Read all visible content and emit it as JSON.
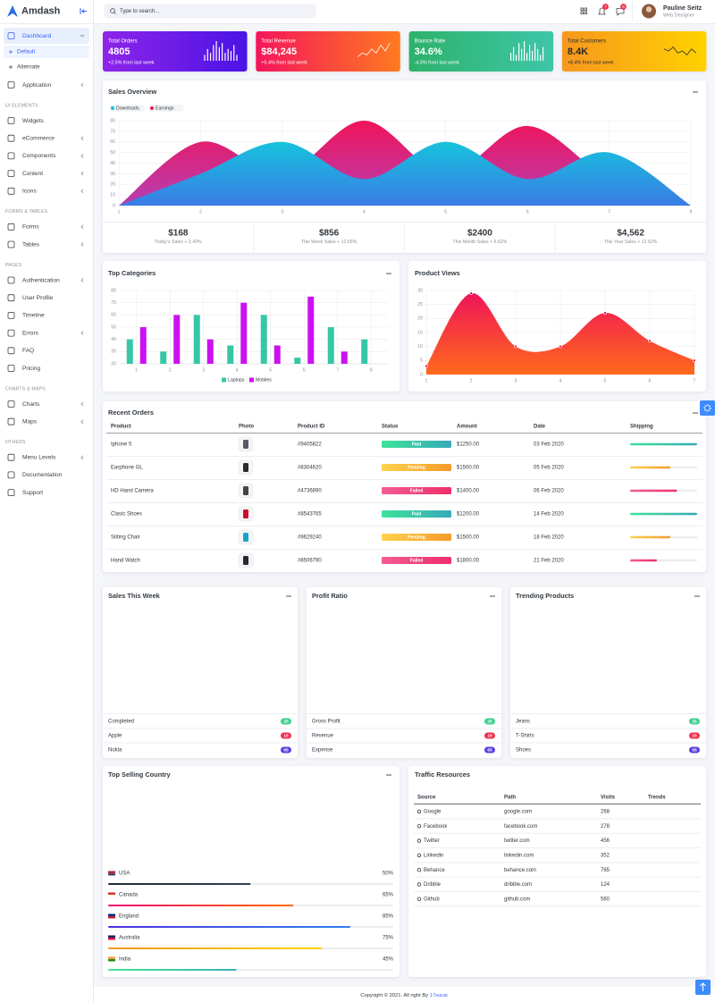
{
  "sidebar": {
    "brand": "Amdash",
    "sections": [
      {
        "items": [
          {
            "label": "Dashboard",
            "expandable": true,
            "active": true,
            "sub": [
              {
                "label": "Default",
                "active": true
              },
              {
                "label": "Alternate"
              }
            ]
          },
          {
            "label": "Application",
            "expandable": true
          }
        ]
      },
      {
        "heading": "UI ELEMENTS",
        "items": [
          {
            "label": "Widgets"
          },
          {
            "label": "eCommerce",
            "expandable": true
          },
          {
            "label": "Components",
            "expandable": true
          },
          {
            "label": "Content",
            "expandable": true
          },
          {
            "label": "Icons",
            "expandable": true
          }
        ]
      },
      {
        "heading": "FORMS & TABLES",
        "items": [
          {
            "label": "Forms",
            "expandable": true
          },
          {
            "label": "Tables",
            "expandable": true
          }
        ]
      },
      {
        "heading": "PAGES",
        "items": [
          {
            "label": "Authentication",
            "expandable": true
          },
          {
            "label": "User Profile"
          },
          {
            "label": "Timeline"
          },
          {
            "label": "Errors",
            "expandable": true
          },
          {
            "label": "FAQ"
          },
          {
            "label": "Pricing"
          }
        ]
      },
      {
        "heading": "CHARTS & MAPS",
        "items": [
          {
            "label": "Charts",
            "expandable": true
          },
          {
            "label": "Maps",
            "expandable": true
          }
        ]
      },
      {
        "heading": "OTHERS",
        "items": [
          {
            "label": "Menu Levels",
            "expandable": true
          },
          {
            "label": "Documentation"
          },
          {
            "label": "Support"
          }
        ]
      }
    ]
  },
  "topbar": {
    "search_placeholder": "Type to search...",
    "badges": [
      7,
      8
    ],
    "user": {
      "name": "Pauline Seitz",
      "role": "Web Designer"
    }
  },
  "stat_cards": [
    {
      "title": "Total Orders",
      "value": "4805",
      "change": "+2.5% from last week",
      "colors": [
        "#8e24e8",
        "#4a14e6"
      ],
      "text_color": "#ffffff",
      "spark": {
        "type": "bar",
        "values": [
          3,
          6,
          4,
          8,
          10,
          7,
          9,
          4,
          6,
          5,
          8,
          3
        ],
        "ylim": [
          0,
          10
        ]
      }
    },
    {
      "title": "Total Revenue",
      "value": "$84,245",
      "change": "+5.4% from last week",
      "colors": [
        "#f5155c",
        "#ff7a1f"
      ],
      "text_color": "#ffffff",
      "spark": {
        "type": "line",
        "values": [
          2,
          4,
          3,
          6,
          4,
          8,
          5,
          9
        ],
        "ylim": [
          0,
          10
        ]
      }
    },
    {
      "title": "Bounce Rate",
      "value": "34.6%",
      "change": "-4.5% from last week",
      "colors": [
        "#2db26a",
        "#3ec6a8"
      ],
      "text_color": "#ffffff",
      "spark": {
        "type": "bar",
        "values": [
          4,
          7,
          3,
          9,
          6,
          10,
          4,
          8,
          5,
          9,
          6,
          3,
          7
        ],
        "ylim": [
          0,
          10
        ]
      }
    },
    {
      "title": "Total Customers",
      "value": "8.4K",
      "change": "+8.4% from last week",
      "colors": [
        "#f7971e",
        "#ffd200"
      ],
      "text_color": "#2b2b2b",
      "spark": {
        "type": "line",
        "values": [
          6,
          5,
          7,
          4,
          5,
          3,
          6,
          4
        ],
        "ylim": [
          0,
          10
        ]
      }
    }
  ],
  "sales_overview": {
    "title": "Sales Overview",
    "chart": {
      "type": "area",
      "categories": [
        1,
        2,
        3,
        4,
        5,
        6,
        7,
        8
      ],
      "ylim": [
        0,
        80
      ],
      "yticks": [
        0,
        10,
        20,
        30,
        40,
        50,
        60,
        70,
        80
      ],
      "grid": true,
      "series": [
        {
          "name": "Earnings",
          "colors": [
            "#f0145a",
            "#b53fb3"
          ],
          "values": [
            0,
            60,
            30,
            80,
            30,
            75,
            25,
            0
          ]
        },
        {
          "name": "Downloads",
          "colors": [
            "#16c3dc",
            "#3a7ce6"
          ],
          "values": [
            0,
            30,
            60,
            25,
            60,
            25,
            50,
            0
          ]
        }
      ]
    },
    "legend_order": [
      1,
      0
    ],
    "summary": [
      {
        "value": "$168",
        "label": "Today's Sales",
        "change": "+ 2.43%"
      },
      {
        "value": "$856",
        "label": "This Week Sales",
        "change": "+ 12.65%"
      },
      {
        "value": "$2400",
        "label": "This Month Sales",
        "change": "+ 5.62%"
      },
      {
        "value": "$4,562",
        "label": "This Year Sales",
        "change": "+ 12.62%"
      }
    ]
  },
  "top_categories": {
    "title": "Top Categories",
    "chart": {
      "type": "bar",
      "categories": [
        1,
        2,
        3,
        4,
        5,
        6,
        7,
        8
      ],
      "ylim": [
        20,
        80
      ],
      "yticks": [
        20,
        30,
        40,
        50,
        60,
        70,
        80
      ],
      "grid": true,
      "series": [
        {
          "name": "Laptops",
          "color": "#35c7a5",
          "values": [
            40,
            30,
            60,
            35,
            60,
            25,
            50,
            40
          ]
        },
        {
          "name": "Mobiles",
          "color": "#cc11f0",
          "values": [
            50,
            60,
            40,
            70,
            35,
            75,
            30,
            null
          ]
        }
      ]
    }
  },
  "product_views": {
    "title": "Product Views",
    "chart": {
      "type": "area",
      "categories": [
        1,
        2,
        3,
        4,
        5,
        6,
        7
      ],
      "ylim": [
        0,
        30
      ],
      "yticks": [
        0,
        5,
        10,
        15,
        20,
        25,
        30
      ],
      "grid": true,
      "series": [
        {
          "colors": [
            "#f0145a",
            "#ff6a1a"
          ],
          "values": [
            3,
            29,
            10,
            10,
            22,
            12,
            5
          ],
          "points": true
        }
      ]
    }
  },
  "recent_orders": {
    "title": "Recent Orders",
    "columns": [
      "Product",
      "Photo",
      "Product ID",
      "Status",
      "Amount",
      "Date",
      "Shipping"
    ],
    "rows": [
      {
        "product": "Iphone 5",
        "photo_color": "#5a5a66",
        "id": "#9405822",
        "status": "Paid",
        "status_colors": [
          "#3ee29a",
          "#37a9b8"
        ],
        "amount": "$1250.00",
        "date": "03 Feb 2020",
        "shipping": 100
      },
      {
        "product": "Earphone GL",
        "photo_color": "#2a2a2a",
        "id": "#8304620",
        "status": "Pending",
        "status_colors": [
          "#ffd34e",
          "#f79a2a"
        ],
        "amount": "$1500.00",
        "date": "05 Feb 2020",
        "shipping": 60
      },
      {
        "product": "HD Hand Camera",
        "photo_color": "#444444",
        "id": "#4736890",
        "status": "Failed",
        "status_colors": [
          "#f25c94",
          "#ee2f6b"
        ],
        "amount": "$1400.00",
        "date": "06 Feb 2020",
        "shipping": 70
      },
      {
        "product": "Clasic Shoes",
        "photo_color": "#c8102e",
        "id": "#8543765",
        "status": "Paid",
        "status_colors": [
          "#3ee29a",
          "#37a9b8"
        ],
        "amount": "$1200.00",
        "date": "14 Feb 2020",
        "shipping": 100
      },
      {
        "product": "Sitting Chair",
        "photo_color": "#1aa3c9",
        "id": "#9629240",
        "status": "Pending",
        "status_colors": [
          "#ffd34e",
          "#f79a2a"
        ],
        "amount": "$1500.00",
        "date": "18 Feb 2020",
        "shipping": 60
      },
      {
        "product": "Hand Watch",
        "photo_color": "#222a33",
        "id": "#8506790",
        "status": "Failed",
        "status_colors": [
          "#f25c94",
          "#ee2f6b"
        ],
        "amount": "$1800.00",
        "date": "21 Feb 2020",
        "shipping": 40
      }
    ]
  },
  "list_cards": [
    {
      "title": "Sales This Week",
      "items": [
        {
          "label": "Completed",
          "badge": 25,
          "color": "#3fcf8f"
        },
        {
          "label": "Apple",
          "badge": 10,
          "color": "#f0314f"
        },
        {
          "label": "Nokia",
          "badge": 65,
          "color": "#5b3fe0"
        }
      ]
    },
    {
      "title": "Profit Ratio",
      "items": [
        {
          "label": "Gross Profit",
          "badge": 25,
          "color": "#3fcf8f"
        },
        {
          "label": "Revenue",
          "badge": 10,
          "color": "#f0314f"
        },
        {
          "label": "Expense",
          "badge": 65,
          "color": "#5b3fe0"
        }
      ]
    },
    {
      "title": "Trending Products",
      "items": [
        {
          "label": "Jeans",
          "badge": 25,
          "color": "#3fcf8f"
        },
        {
          "label": "T-Shirts",
          "badge": 10,
          "color": "#f0314f"
        },
        {
          "label": "Shoes",
          "badge": 65,
          "color": "#5b3fe0"
        }
      ]
    }
  ],
  "top_selling_country": {
    "title": "Top Selling Country",
    "items": [
      {
        "name": "USA",
        "value": 50,
        "value_label": "50%",
        "colors": [
          "#1f2b3a",
          "#2e4156"
        ],
        "flag": [
          "#b22234",
          "#3c3b6e"
        ]
      },
      {
        "name": "Canada",
        "value": 65,
        "value_label": "65%",
        "colors": [
          "#ee0979",
          "#ff6a00"
        ],
        "flag": [
          "#d52b1e",
          "#ffffff"
        ]
      },
      {
        "name": "England",
        "value": 85,
        "value_label": "85%",
        "colors": [
          "#4e2fe0",
          "#2f80ed"
        ],
        "flag": [
          "#012169",
          "#c8102e"
        ]
      },
      {
        "name": "Australia",
        "value": 75,
        "value_label": "75%",
        "colors": [
          "#f7971e",
          "#ffd200"
        ],
        "flag": [
          "#012169",
          "#e4002b"
        ]
      },
      {
        "name": "India",
        "value": 45,
        "value_label": "45%",
        "colors": [
          "#42e695",
          "#3bb2b8"
        ],
        "flag": [
          "#ff9933",
          "#138808"
        ]
      }
    ]
  },
  "traffic_resources": {
    "title": "Traffic Resources",
    "columns": [
      "Source",
      "Path",
      "Visits",
      "Trends"
    ],
    "rows": [
      [
        "Google",
        "google.com",
        268
      ],
      [
        "Facebook",
        "facebook.com",
        278
      ],
      [
        "Twitter",
        "twitter.com",
        456
      ],
      [
        "Linkedin",
        "linkedin.com",
        352
      ],
      [
        "Behance",
        "behance.com",
        765
      ],
      [
        "Dribble",
        "dribble.com",
        124
      ],
      [
        "Github",
        "github.com",
        560
      ]
    ]
  },
  "footer": {
    "text": "Copyright © 2021. All right By",
    "link": "17sucai"
  }
}
